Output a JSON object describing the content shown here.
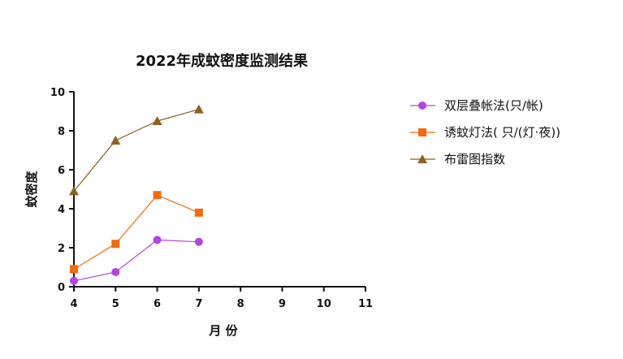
{
  "chart_data": {
    "type": "line",
    "title": "2022年成蚊密度监测结果",
    "xlabel": "月 份",
    "ylabel": "蚊密度",
    "xlim": [
      4,
      11
    ],
    "ylim": [
      0,
      10
    ],
    "x_ticks": [
      "4",
      "5",
      "6",
      "7",
      "8",
      "9",
      "10",
      "11"
    ],
    "y_ticks": [
      "0",
      "2",
      "4",
      "6",
      "8",
      "10"
    ],
    "legend_position": "right",
    "series": [
      {
        "name": "双层叠帐法(只/帐)",
        "marker": "circle",
        "color": "#b445e0",
        "x": [
          4,
          5,
          6,
          7
        ],
        "values": [
          0.3,
          0.75,
          2.4,
          2.3
        ]
      },
      {
        "name": "诱蚊灯法( 只/(灯·夜))",
        "marker": "square",
        "color": "#f26b0f",
        "x": [
          4,
          5,
          6,
          7
        ],
        "values": [
          0.9,
          2.2,
          4.7,
          3.8
        ]
      },
      {
        "name": "布雷图指数",
        "marker": "triangle",
        "color": "#8b6220",
        "x": [
          4,
          5,
          6,
          7
        ],
        "values": [
          4.9,
          7.5,
          8.5,
          9.1
        ]
      }
    ]
  }
}
